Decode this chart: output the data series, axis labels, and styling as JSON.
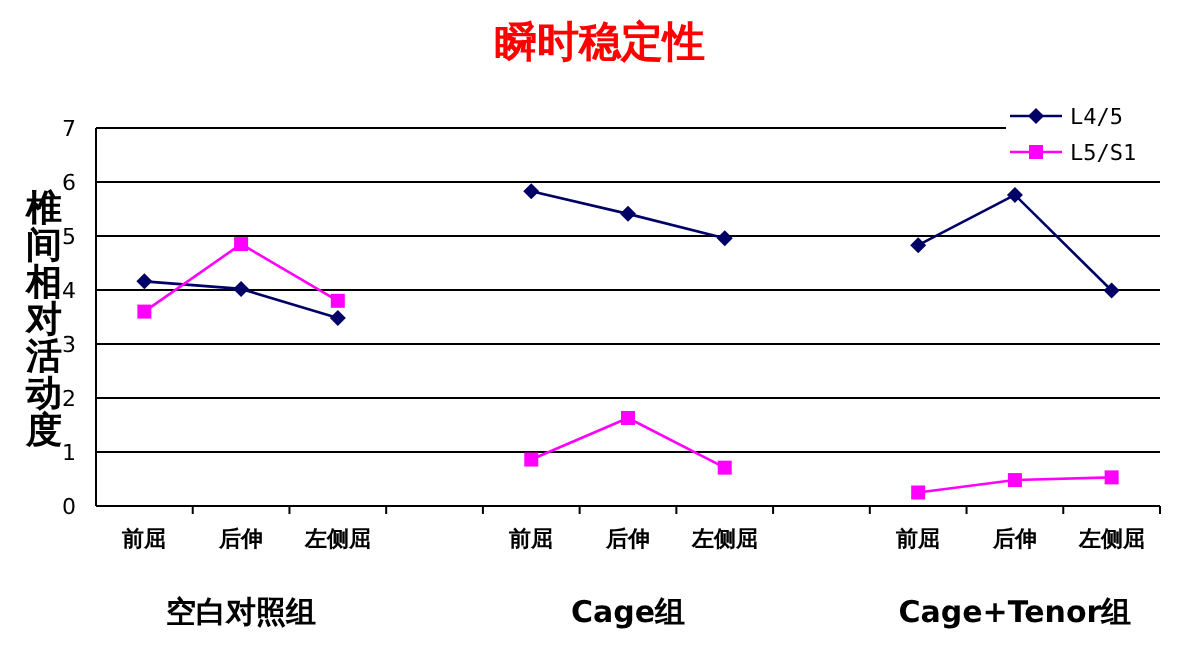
{
  "chart_data": {
    "type": "line",
    "title": "瞬时稳定性",
    "ylabel": "椎间相对活动度",
    "categories": [
      "前屈",
      "后伸",
      "左侧屈",
      null,
      "前屈",
      "后伸",
      "左侧屈",
      null,
      "前屈",
      "后伸",
      "左侧屈"
    ],
    "series": [
      {
        "name": "L4/5",
        "color": "#000066",
        "marker": "diamond",
        "values": [
          4.16,
          4.02,
          3.48,
          null,
          5.83,
          5.41,
          4.96,
          null,
          4.83,
          5.76,
          3.99
        ]
      },
      {
        "name": "L5/S1",
        "color": "#ff00ff",
        "marker": "square",
        "values": [
          3.6,
          4.85,
          3.8,
          null,
          0.86,
          1.63,
          0.71,
          null,
          0.25,
          0.48,
          0.53
        ]
      }
    ],
    "ylim": [
      0,
      7
    ],
    "yticks": [
      0,
      1,
      2,
      3,
      4,
      5,
      6,
      7
    ],
    "grid": "y",
    "legend": "top right",
    "annotations": [
      "空白对照组",
      "Cage组",
      "Cage+Tenor组"
    ]
  }
}
